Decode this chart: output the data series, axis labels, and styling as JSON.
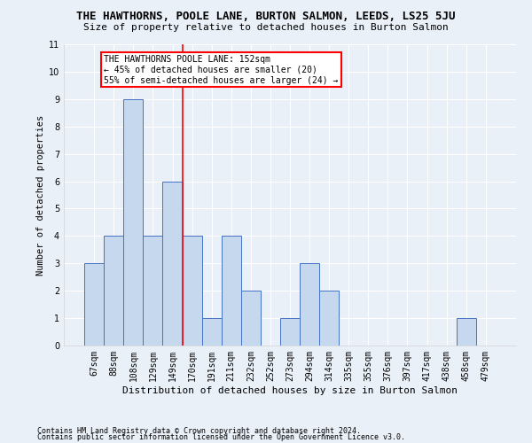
{
  "title": "THE HAWTHORNS, POOLE LANE, BURTON SALMON, LEEDS, LS25 5JU",
  "subtitle": "Size of property relative to detached houses in Burton Salmon",
  "xlabel": "Distribution of detached houses by size in Burton Salmon",
  "ylabel": "Number of detached properties",
  "categories": [
    "67sqm",
    "88sqm",
    "108sqm",
    "129sqm",
    "149sqm",
    "170sqm",
    "191sqm",
    "211sqm",
    "232sqm",
    "252sqm",
    "273sqm",
    "294sqm",
    "314sqm",
    "335sqm",
    "355sqm",
    "376sqm",
    "397sqm",
    "417sqm",
    "438sqm",
    "458sqm",
    "479sqm"
  ],
  "values": [
    3,
    4,
    9,
    4,
    6,
    4,
    1,
    4,
    2,
    0,
    1,
    3,
    2,
    0,
    0,
    0,
    0,
    0,
    0,
    1,
    0
  ],
  "bar_color": "#c5d8ed",
  "bar_edge_color": "#4472c4",
  "red_line_index": 4.5,
  "annotation_title": "THE HAWTHORNS POOLE LANE: 152sqm",
  "annotation_line1": "← 45% of detached houses are smaller (20)",
  "annotation_line2": "55% of semi-detached houses are larger (24) →",
  "ylim": [
    0,
    11
  ],
  "yticks": [
    0,
    1,
    2,
    3,
    4,
    5,
    6,
    7,
    8,
    9,
    10,
    11
  ],
  "footer1": "Contains HM Land Registry data © Crown copyright and database right 2024.",
  "footer2": "Contains public sector information licensed under the Open Government Licence v3.0.",
  "bg_color": "#eaf0f8",
  "plot_bg_color": "#eaf0f8",
  "title_fontsize": 9,
  "subtitle_fontsize": 8,
  "xlabel_fontsize": 8,
  "ylabel_fontsize": 7.5,
  "tick_fontsize": 7,
  "footer_fontsize": 6,
  "annotation_fontsize": 7
}
